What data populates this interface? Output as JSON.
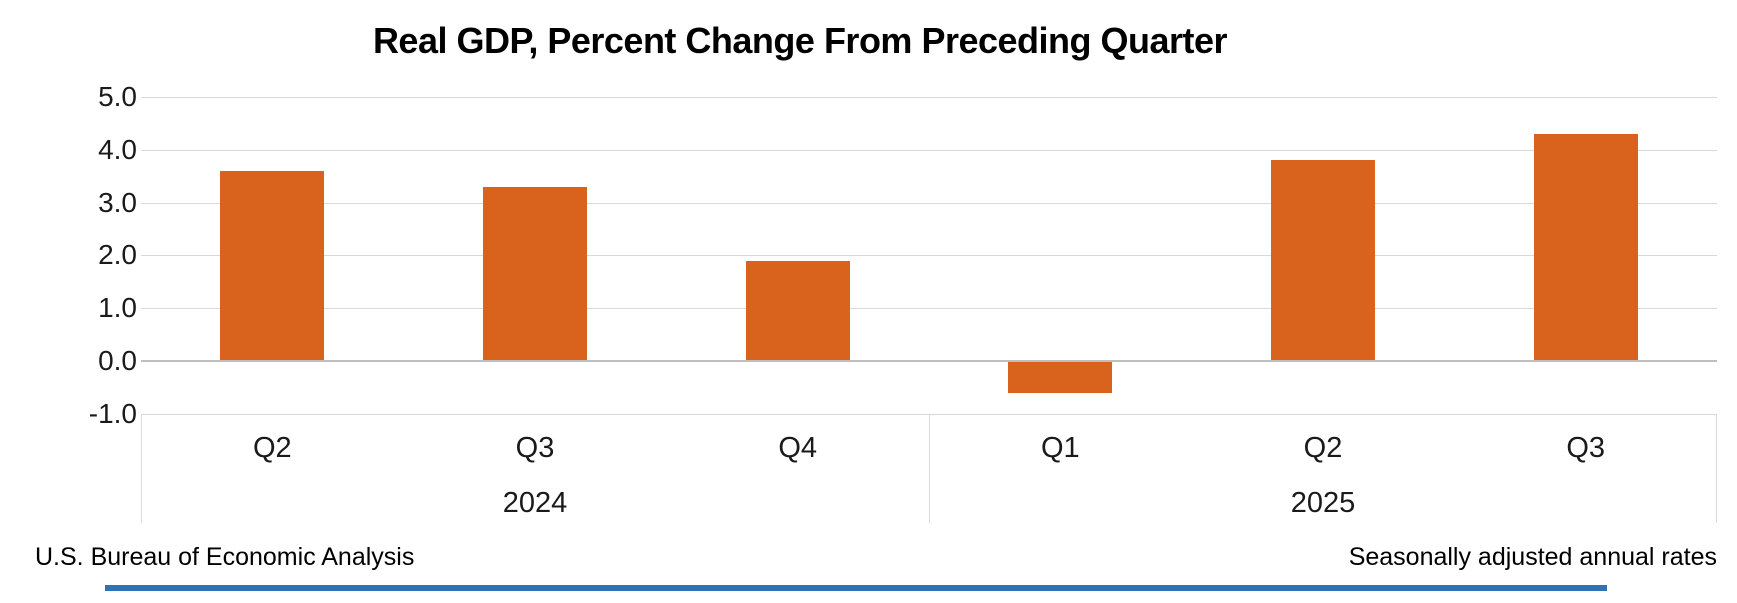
{
  "colors": {
    "bar": "#D9631C",
    "gridline": "#D9D9D9",
    "zero_line": "#BFBFBF",
    "axis_box_border": "#D9D9D9",
    "accent_bar": "#2E74B5",
    "text": "#000000",
    "background": "#FFFFFF"
  },
  "chart_data": {
    "type": "bar",
    "title": "Real GDP, Percent Change From Preceding Quarter",
    "categories": [
      "Q2",
      "Q3",
      "Q4",
      "Q1",
      "Q2",
      "Q3"
    ],
    "values": [
      3.6,
      3.3,
      1.9,
      -0.6,
      3.8,
      4.3
    ],
    "groups": [
      {
        "label": "2024",
        "span": 3
      },
      {
        "label": "2025",
        "span": 3
      }
    ],
    "y_ticks": [
      5.0,
      4.0,
      3.0,
      2.0,
      1.0,
      0.0,
      -1.0
    ],
    "ylim": [
      -1.0,
      5.0
    ],
    "xlabel": "",
    "ylabel": "",
    "grid": true,
    "legend": false,
    "source_note": "U.S. Bureau of Economic Analysis",
    "right_note": "Seasonally adjusted annual rates"
  }
}
